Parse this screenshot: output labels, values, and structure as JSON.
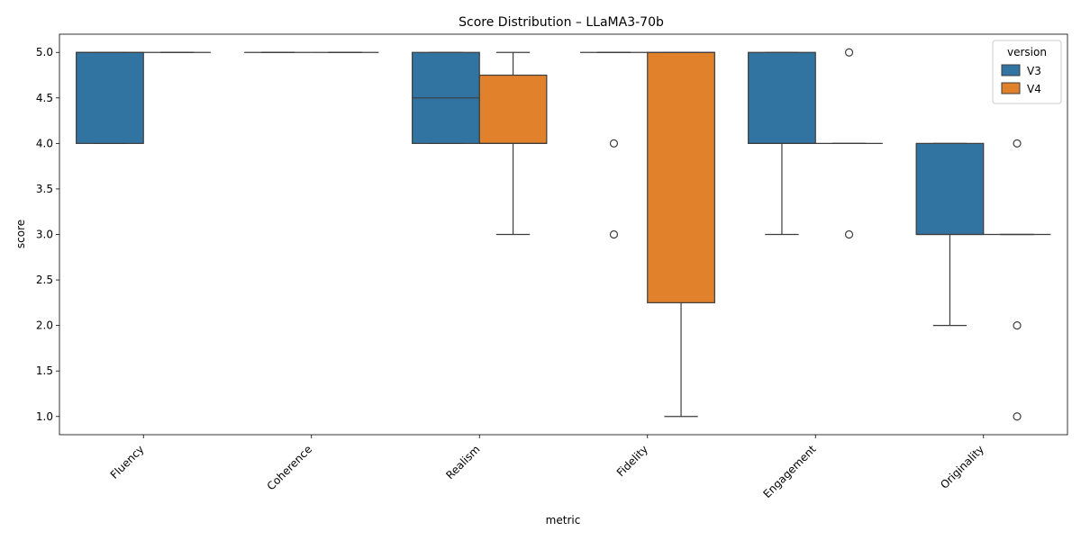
{
  "chart_data": {
    "type": "box",
    "title": "Score Distribution – LLaMA3-70b",
    "xlabel": "metric",
    "ylabel": "score",
    "ylim": [
      0.8,
      5.2
    ],
    "yticks": [
      1.0,
      1.5,
      2.0,
      2.5,
      3.0,
      3.5,
      4.0,
      4.5,
      5.0
    ],
    "ytick_labels": [
      "1.0",
      "1.5",
      "2.0",
      "2.5",
      "3.0",
      "3.5",
      "4.0",
      "4.5",
      "5.0"
    ],
    "categories": [
      "Fluency",
      "Coherence",
      "Realism",
      "Fidelity",
      "Engagement",
      "Originality"
    ],
    "legend": {
      "title": "version",
      "position": "top-right"
    },
    "series": [
      {
        "name": "V3",
        "color": "#3274a1",
        "boxes": [
          {
            "q1": 4.0,
            "median": 5.0,
            "q3": 5.0,
            "whisker_low": 4.0,
            "whisker_high": 5.0,
            "outliers": []
          },
          {
            "q1": 5.0,
            "median": 5.0,
            "q3": 5.0,
            "whisker_low": 5.0,
            "whisker_high": 5.0,
            "outliers": []
          },
          {
            "q1": 4.0,
            "median": 4.5,
            "q3": 5.0,
            "whisker_low": 4.0,
            "whisker_high": 5.0,
            "outliers": []
          },
          {
            "q1": 5.0,
            "median": 5.0,
            "q3": 5.0,
            "whisker_low": 5.0,
            "whisker_high": 5.0,
            "outliers": [
              4.0,
              3.0
            ]
          },
          {
            "q1": 4.0,
            "median": 4.0,
            "q3": 5.0,
            "whisker_low": 3.0,
            "whisker_high": 5.0,
            "outliers": []
          },
          {
            "q1": 3.0,
            "median": 3.0,
            "q3": 4.0,
            "whisker_low": 2.0,
            "whisker_high": 4.0,
            "outliers": []
          }
        ]
      },
      {
        "name": "V4",
        "color": "#e1812c",
        "boxes": [
          {
            "q1": 5.0,
            "median": 5.0,
            "q3": 5.0,
            "whisker_low": 5.0,
            "whisker_high": 5.0,
            "outliers": []
          },
          {
            "q1": 5.0,
            "median": 5.0,
            "q3": 5.0,
            "whisker_low": 5.0,
            "whisker_high": 5.0,
            "outliers": []
          },
          {
            "q1": 4.0,
            "median": 4.0,
            "q3": 4.75,
            "whisker_low": 3.0,
            "whisker_high": 5.0,
            "outliers": []
          },
          {
            "q1": 2.25,
            "median": 5.0,
            "q3": 5.0,
            "whisker_low": 1.0,
            "whisker_high": 5.0,
            "outliers": []
          },
          {
            "q1": 4.0,
            "median": 4.0,
            "q3": 4.0,
            "whisker_low": 4.0,
            "whisker_high": 4.0,
            "outliers": [
              5.0,
              3.0
            ]
          },
          {
            "q1": 3.0,
            "median": 3.0,
            "q3": 3.0,
            "whisker_low": 3.0,
            "whisker_high": 3.0,
            "outliers": [
              4.0,
              2.0,
              1.0
            ]
          }
        ]
      }
    ]
  }
}
